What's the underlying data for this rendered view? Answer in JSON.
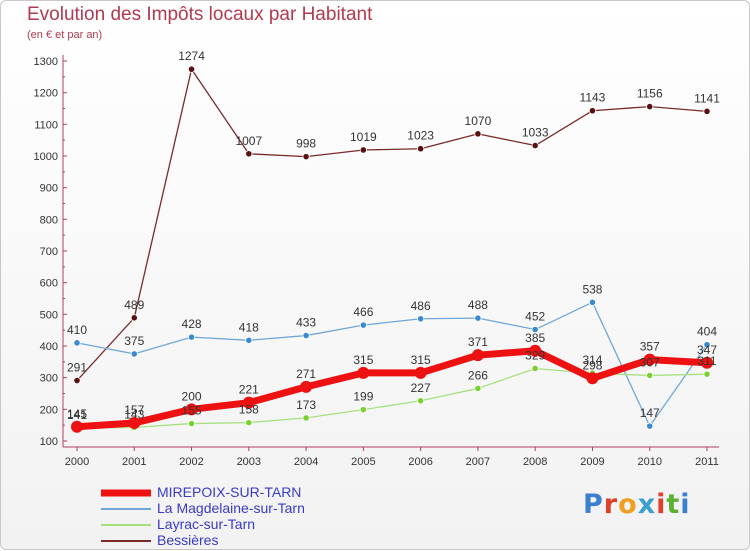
{
  "header": {
    "title": "Evolution des Impôts locaux par Habitant",
    "subtitle": "(en € et par an)"
  },
  "brand": {
    "text": "Proxiti",
    "colors": [
      "#3a7fd0",
      "#e0402a",
      "#f0a020",
      "#3aa0d0",
      "#e0402a",
      "#5ab030",
      "#3a7fd0"
    ]
  },
  "chart_data": {
    "type": "line",
    "title": "Evolution des Impôts locaux par Habitant",
    "subtitle": "(en € et par an)",
    "xlabel": "",
    "ylabel": "",
    "categories": [
      "2000",
      "2001",
      "2002",
      "2003",
      "2004",
      "2005",
      "2006",
      "2007",
      "2008",
      "2009",
      "2010",
      "2011"
    ],
    "ylim": [
      100,
      1300
    ],
    "yticks": [
      100,
      200,
      300,
      400,
      500,
      600,
      700,
      800,
      900,
      1000,
      1100,
      1200,
      1300
    ],
    "grid": false,
    "legend_position": "bottom-left",
    "series": [
      {
        "name": "Bessières",
        "color": "#7a2a2a",
        "marker": "#5a1010",
        "width": 1.3,
        "values": [
          291,
          489,
          1274,
          1007,
          998,
          1019,
          1023,
          1070,
          1033,
          1143,
          1156,
          1141
        ],
        "labels": [
          "291",
          "489",
          "1274",
          "1007",
          "998",
          "1019",
          "1023",
          "1070",
          "1033",
          "1143",
          "1156",
          "1141"
        ]
      },
      {
        "name": "La Magdelaine-sur-Tarn",
        "color": "#6fa8d8",
        "marker": "#3a8ad0",
        "width": 1.3,
        "values": [
          410,
          375,
          428,
          418,
          433,
          466,
          486,
          488,
          452,
          538,
          147,
          404
        ],
        "labels": [
          "410",
          "375",
          "428",
          "418",
          "433",
          "466",
          "486",
          "488",
          "452",
          "538",
          "147",
          "404"
        ]
      },
      {
        "name": "Layrac-sur-Tarn",
        "color": "#a8e080",
        "marker": "#7ad030",
        "width": 1.3,
        "values": [
          141,
          143,
          155,
          158,
          173,
          199,
          227,
          266,
          329,
          314,
          307,
          311
        ],
        "labels": [
          "141",
          "143",
          "155",
          "158",
          "173",
          "199",
          "227",
          "266",
          "329",
          "314",
          "307",
          "311"
        ]
      },
      {
        "name": "MIREPOIX-SUR-TARN",
        "color": "#ee1111",
        "marker": "#ee1111",
        "width": 7,
        "values": [
          145,
          157,
          200,
          221,
          271,
          315,
          315,
          371,
          385,
          298,
          357,
          347
        ],
        "labels": [
          "145",
          "157",
          "200",
          "221",
          "271",
          "315",
          "315",
          "371",
          "385",
          "298",
          "357",
          "347"
        ]
      }
    ],
    "legend": [
      {
        "name": "MIREPOIX-SUR-TARN",
        "color": "#ee1111",
        "thick": true
      },
      {
        "name": "La Magdelaine-sur-Tarn",
        "color": "#6fa8d8",
        "thick": false
      },
      {
        "name": "Layrac-sur-Tarn",
        "color": "#a8e080",
        "thick": false
      },
      {
        "name": "Bessières",
        "color": "#7a2a2a",
        "thick": false
      }
    ]
  }
}
